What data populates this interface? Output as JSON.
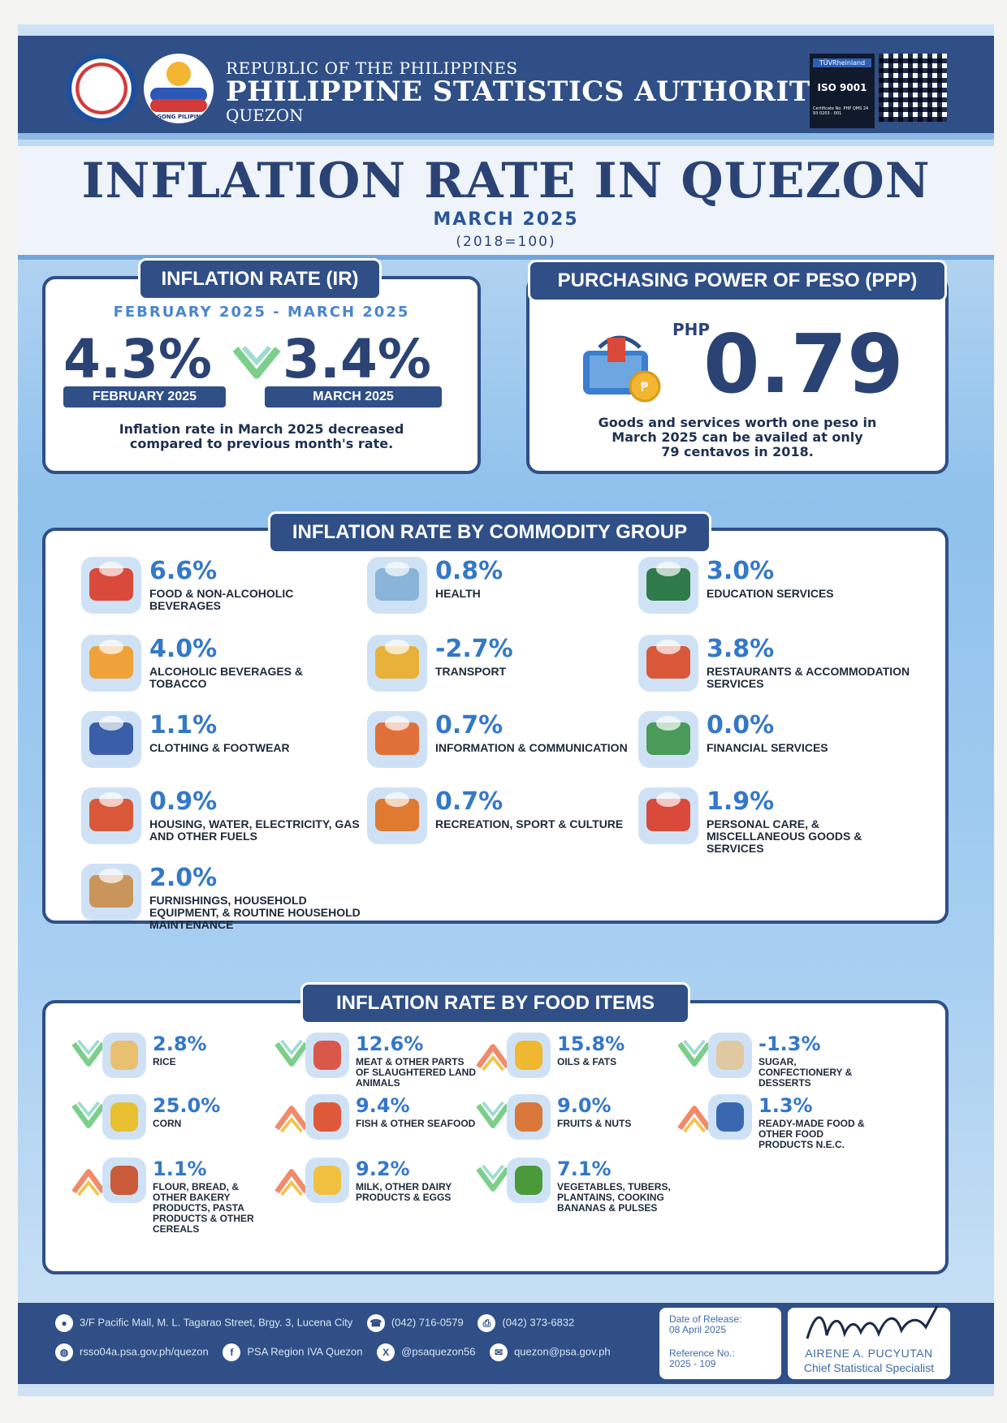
{
  "header": {
    "line1": "REPUBLIC OF THE PHILIPPINES",
    "line2": "PHILIPPINE STATISTICS AUTHORITY",
    "line3": "QUEZON",
    "bagong_pilipinas": "BAGONG PILIPINAS",
    "iso": {
      "brand": "TÜVRheinland",
      "label": "ISO 9001",
      "cert": "Certificate No. PHP QMS 24 93 0203 - 001"
    }
  },
  "title": {
    "main": "INFLATION RATE IN QUEZON",
    "period": "MARCH 2025",
    "base": "(2018=100)"
  },
  "ir": {
    "tab": "INFLATION RATE (IR)",
    "period": "FEBRUARY 2025 -  MARCH 2025",
    "feb_value": "4.3%",
    "mar_value": "3.4%",
    "feb_label": "FEBRUARY 2025",
    "mar_label": "MARCH 2025",
    "note_1": "Inflation rate in March 2025 decreased",
    "note_2": "compared to previous month's rate.",
    "trend": "down"
  },
  "ppp": {
    "tab": "PURCHASING POWER OF PESO (PPP)",
    "currency": "PHP",
    "value": "0.79",
    "note_1": "Goods and services worth one peso in",
    "note_2": "March 2025 can be availed at only",
    "note_3": "79 centavos in 2018."
  },
  "commodity": {
    "tab": "INFLATION RATE  BY COMMODITY GROUP",
    "items": [
      {
        "value": "6.6%",
        "label": "FOOD & NON-ALCOHOLIC BEVERAGES",
        "color": "#d94a3a"
      },
      {
        "value": "0.8%",
        "label": "HEALTH",
        "color": "#8ab4d8"
      },
      {
        "value": "3.0%",
        "label": "EDUCATION SERVICES",
        "color": "#2f7a4a"
      },
      {
        "value": "4.0%",
        "label": "ALCOHOLIC BEVERAGES & TOBACCO",
        "color": "#f0a23a"
      },
      {
        "value": "-2.7%",
        "label": "TRANSPORT",
        "color": "#e8b23a"
      },
      {
        "value": "3.8%",
        "label": "RESTAURANTS & ACCOMMODATION SERVICES",
        "color": "#d9583a"
      },
      {
        "value": "1.1%",
        "label": "CLOTHING & FOOTWEAR",
        "color": "#3a5ea8"
      },
      {
        "value": "0.7%",
        "label": "INFORMATION & COMMUNICATION",
        "color": "#e0703a"
      },
      {
        "value": "0.0%",
        "label": "FINANCIAL SERVICES",
        "color": "#4a9a5a"
      },
      {
        "value": "0.9%",
        "label": "HOUSING, WATER, ELECTRICITY, GAS AND OTHER FUELS",
        "color": "#d9583a"
      },
      {
        "value": "0.7%",
        "label": "RECREATION, SPORT & CULTURE",
        "color": "#e07a30"
      },
      {
        "value": "1.9%",
        "label": "PERSONAL CARE, & MISCELLANEOUS GOODS & SERVICES",
        "color": "#d94a3a"
      },
      {
        "value": "2.0%",
        "label": "FURNISHINGS, HOUSEHOLD EQUIPMENT, & ROUTINE HOUSEHOLD MAINTENANCE",
        "color": "#c9955a"
      }
    ]
  },
  "food": {
    "tab": "INFLATION RATE BY FOOD ITEMS",
    "items": [
      {
        "value": "2.8%",
        "label": "RICE",
        "trend": "down",
        "color": "#e8c070"
      },
      {
        "value": "12.6%",
        "label": "MEAT & OTHER PARTS OF SLAUGHTERED LAND ANIMALS",
        "trend": "down",
        "color": "#d9584a"
      },
      {
        "value": "15.8%",
        "label": "OILS & FATS",
        "trend": "up",
        "color": "#f0b830"
      },
      {
        "value": "-1.3%",
        "label": "SUGAR, CONFECTIONERY & DESSERTS",
        "trend": "down",
        "color": "#e0c8a0"
      },
      {
        "value": "25.0%",
        "label": "CORN",
        "trend": "down",
        "color": "#e8c030"
      },
      {
        "value": "9.4%",
        "label": "FISH & OTHER SEAFOOD",
        "trend": "up",
        "color": "#e0583a"
      },
      {
        "value": "9.0%",
        "label": "FRUITS & NUTS",
        "trend": "down",
        "color": "#d9783a"
      },
      {
        "value": "1.3%",
        "label": "READY-MADE FOOD & OTHER FOOD PRODUCTS N.E.C.",
        "trend": "up",
        "color": "#3a68b0"
      },
      {
        "value": "1.1%",
        "label": "FLOUR, BREAD, & OTHER BAKERY PRODUCTS, PASTA PRODUCTS & OTHER CEREALS",
        "trend": "up",
        "color": "#c95a3a"
      },
      {
        "value": "9.2%",
        "label": "MILK, OTHER DAIRY PRODUCTS & EGGS",
        "trend": "up",
        "color": "#f0c040"
      },
      {
        "value": "7.1%",
        "label": "VEGETABLES, TUBERS, PLANTAINS, COOKING BANANAS & PULSES",
        "trend": "down",
        "color": "#4a9a3a"
      }
    ]
  },
  "footer": {
    "address": "3/F Pacific Mall, M. L. Tagarao Street, Brgy. 3, Lucena City",
    "phone": "(042) 716-0579",
    "fax": "(042) 373-6832",
    "website": "rsso04a.psa.gov.ph/quezon",
    "facebook": "PSA Region IVA Quezon",
    "twitter": "@psaquezon56",
    "email": "quezon@psa.gov.ph",
    "release_label": "Date of Release:",
    "release_date": "08 April 2025",
    "ref_label": "Reference No.:",
    "ref_no": "2025 - 109",
    "signatory": "AIRENE A. PUCYUTAN",
    "signatory_title": "Chief Statistical Specialist"
  },
  "colors": {
    "navy": "#2f4f86",
    "accent_blue": "#3478c8",
    "trend_down": "#7ccf8a",
    "trend_up": "#f08a6a"
  }
}
